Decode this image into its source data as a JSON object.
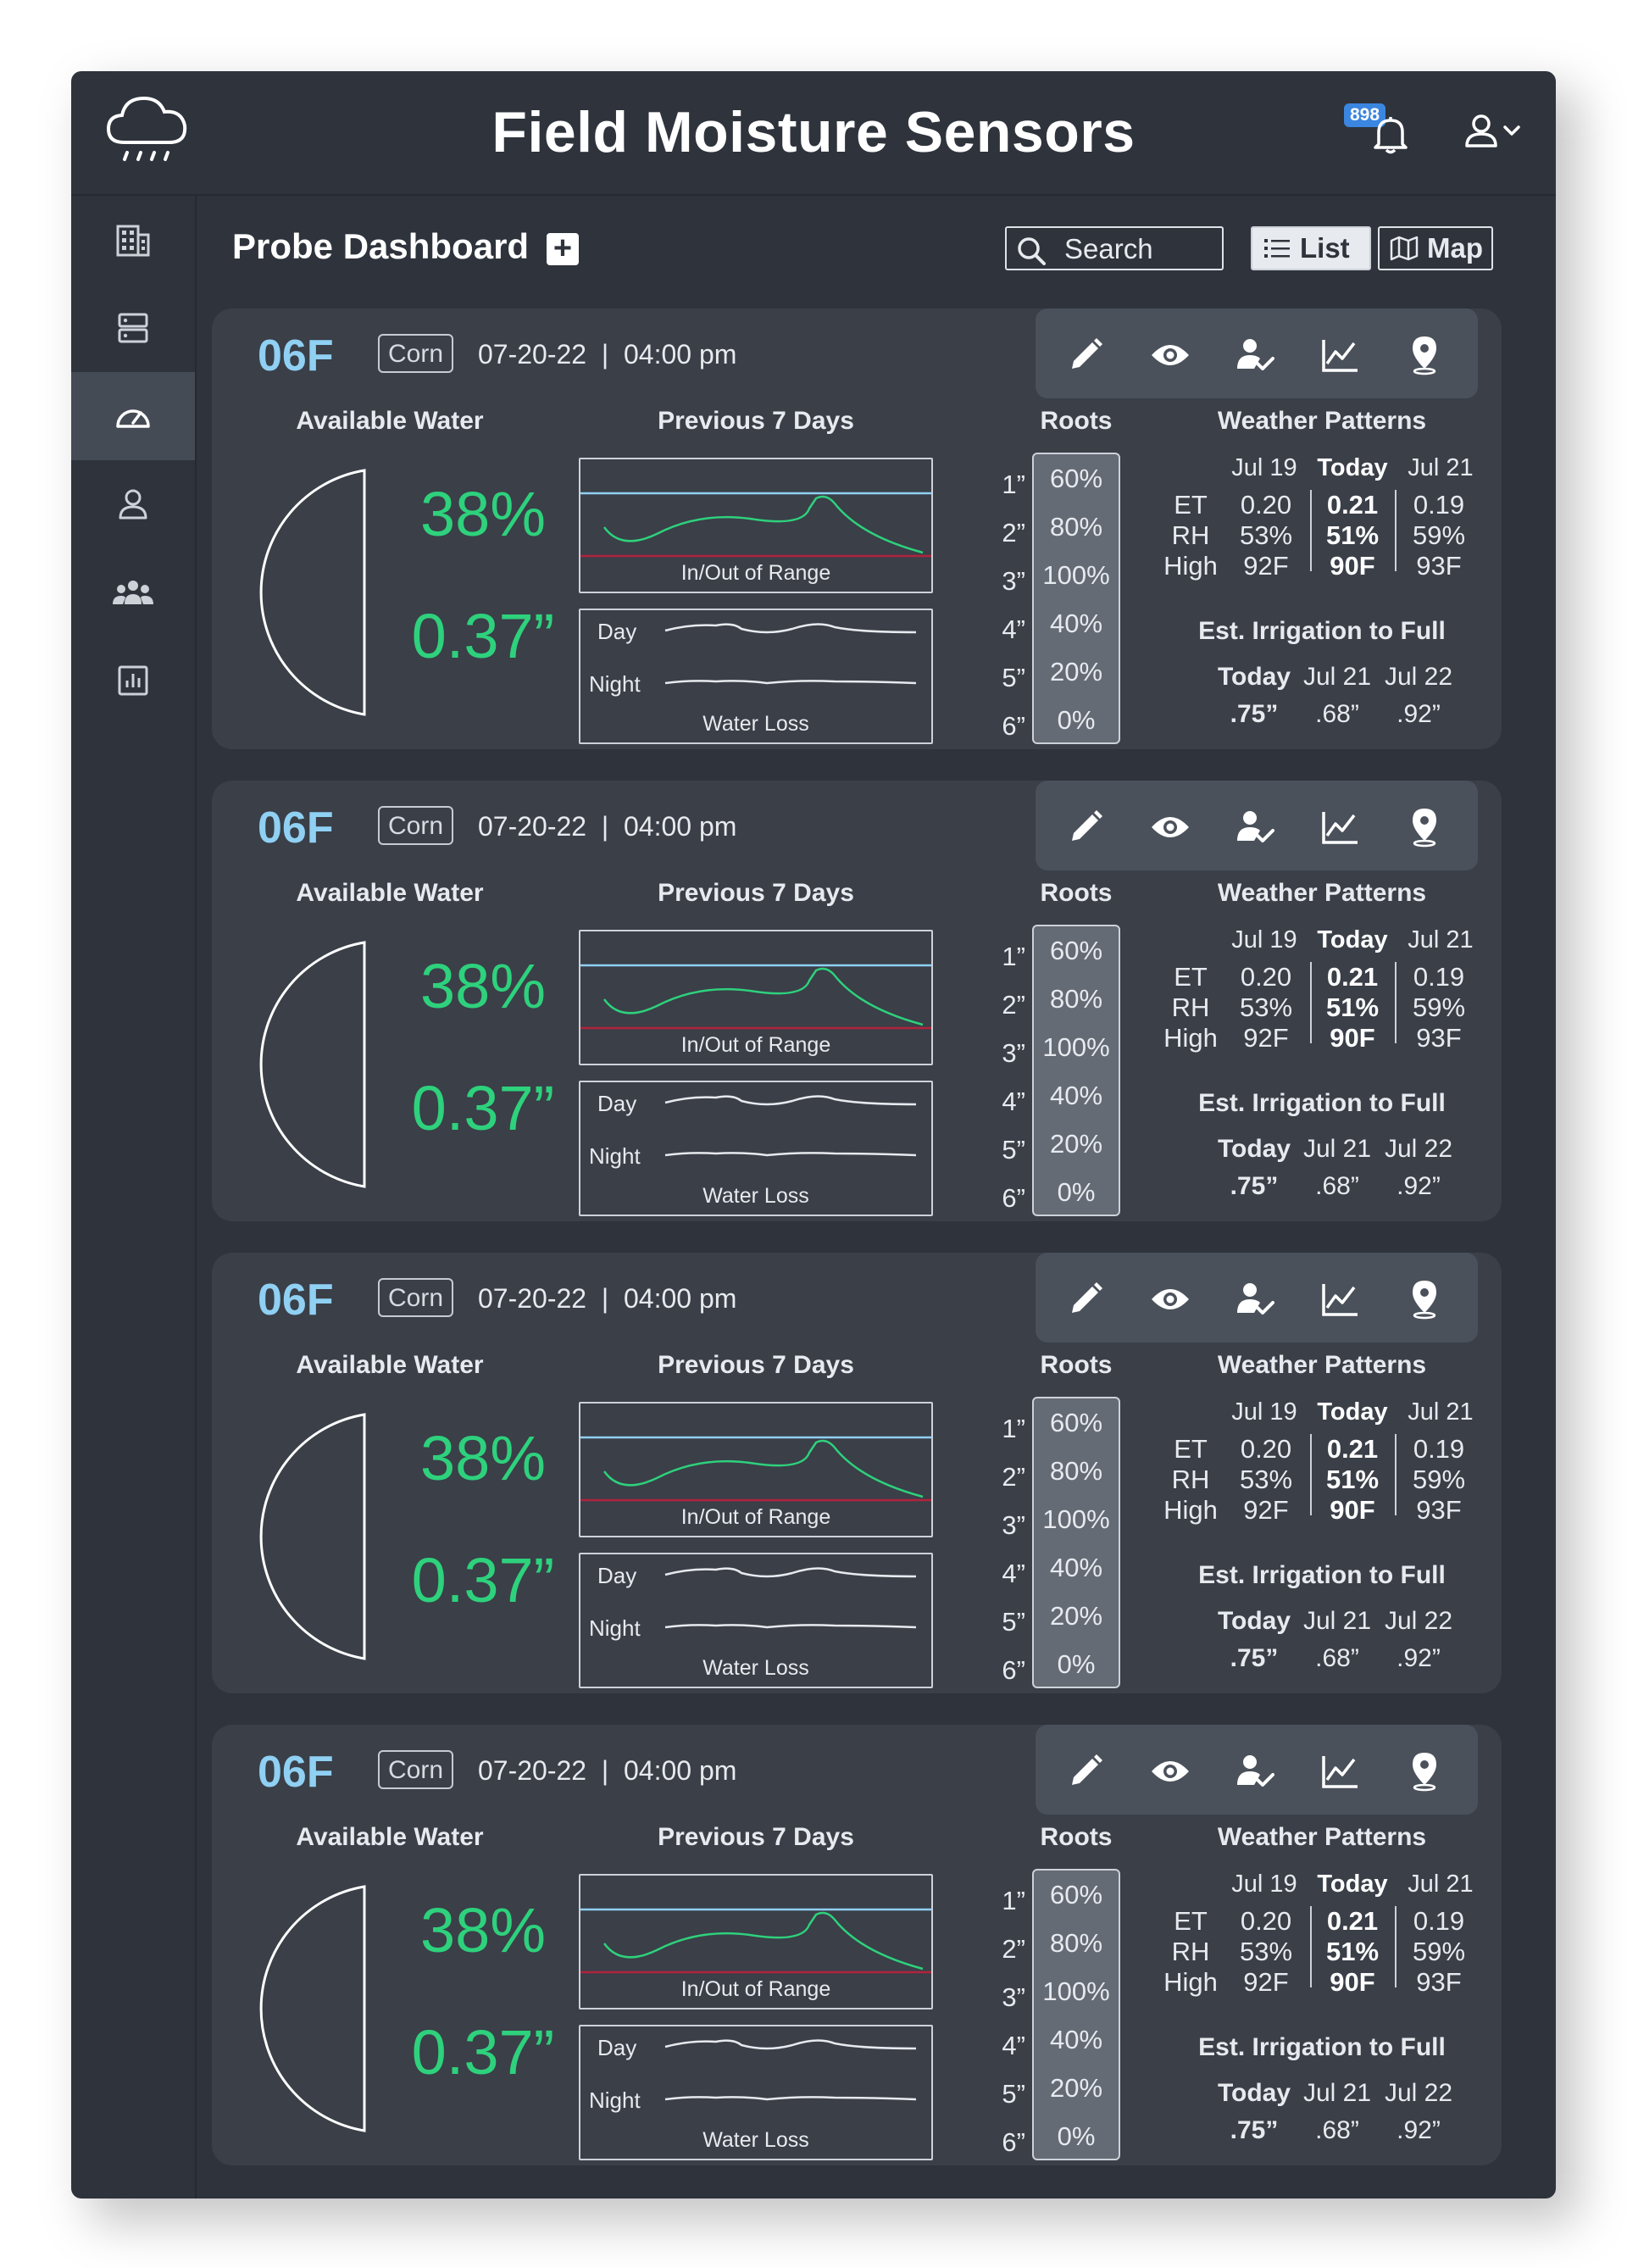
{
  "app": {
    "title": "Field Moisture Sensors",
    "notification_count": "898"
  },
  "page": {
    "title": "Probe Dashboard"
  },
  "toolbar": {
    "search_placeholder": "Search",
    "list_label": "List",
    "map_label": "Map"
  },
  "sidebar": {
    "items": [
      {
        "name": "buildings",
        "icon": "building-icon"
      },
      {
        "name": "servers",
        "icon": "server-icon"
      },
      {
        "name": "dashboard",
        "icon": "gauge-icon",
        "active": true
      },
      {
        "name": "user",
        "icon": "person-icon"
      },
      {
        "name": "team",
        "icon": "group-icon"
      },
      {
        "name": "reports",
        "icon": "bar-chart-icon"
      }
    ]
  },
  "labels": {
    "available_water": "Available Water",
    "previous_7_days": "Previous 7 Days",
    "roots": "Roots",
    "weather_patterns": "Weather Patterns",
    "in_out_range": "In/Out of Range",
    "day": "Day",
    "night": "Night",
    "water_loss": "Water Loss",
    "est_irrigation": "Est. Irrigation to Full"
  },
  "colors": {
    "accent_blue": "#8fd0f3",
    "accent_green": "#2ed17c",
    "range_low": "#b0233c",
    "range_high": "#8fd0f3"
  },
  "probes": [
    {
      "id": "06F",
      "crop": "Corn",
      "date": "07-20-22",
      "time": "04:00 pm",
      "available_water_pct": "38%",
      "available_water_in": "0.37”",
      "roots": [
        {
          "depth": "1”",
          "value": "60%"
        },
        {
          "depth": "2”",
          "value": "80%"
        },
        {
          "depth": "3”",
          "value": "100%"
        },
        {
          "depth": "4”",
          "value": "40%"
        },
        {
          "depth": "5”",
          "value": "20%"
        },
        {
          "depth": "6”",
          "value": "0%"
        }
      ],
      "weather": {
        "days": [
          "Jul 19",
          "Today",
          "Jul 21"
        ],
        "rows": [
          {
            "label": "ET",
            "values": [
              "0.20",
              "0.21",
              "0.19"
            ]
          },
          {
            "label": "RH",
            "values": [
              "53%",
              "51%",
              "59%"
            ]
          },
          {
            "label": "High",
            "values": [
              "92F",
              "90F",
              "93F"
            ]
          }
        ]
      },
      "irrigation": {
        "days": [
          "Today",
          "Jul 21",
          "Jul 22"
        ],
        "values": [
          ".75”",
          ".68”",
          ".92”"
        ]
      }
    },
    {
      "id": "06F",
      "crop": "Corn",
      "date": "07-20-22",
      "time": "04:00 pm",
      "available_water_pct": "38%",
      "available_water_in": "0.37”",
      "roots": [
        {
          "depth": "1”",
          "value": "60%"
        },
        {
          "depth": "2”",
          "value": "80%"
        },
        {
          "depth": "3”",
          "value": "100%"
        },
        {
          "depth": "4”",
          "value": "40%"
        },
        {
          "depth": "5”",
          "value": "20%"
        },
        {
          "depth": "6”",
          "value": "0%"
        }
      ],
      "weather": {
        "days": [
          "Jul 19",
          "Today",
          "Jul 21"
        ],
        "rows": [
          {
            "label": "ET",
            "values": [
              "0.20",
              "0.21",
              "0.19"
            ]
          },
          {
            "label": "RH",
            "values": [
              "53%",
              "51%",
              "59%"
            ]
          },
          {
            "label": "High",
            "values": [
              "92F",
              "90F",
              "93F"
            ]
          }
        ]
      },
      "irrigation": {
        "days": [
          "Today",
          "Jul 21",
          "Jul 22"
        ],
        "values": [
          ".75”",
          ".68”",
          ".92”"
        ]
      }
    },
    {
      "id": "06F",
      "crop": "Corn",
      "date": "07-20-22",
      "time": "04:00 pm",
      "available_water_pct": "38%",
      "available_water_in": "0.37”",
      "roots": [
        {
          "depth": "1”",
          "value": "60%"
        },
        {
          "depth": "2”",
          "value": "80%"
        },
        {
          "depth": "3”",
          "value": "100%"
        },
        {
          "depth": "4”",
          "value": "40%"
        },
        {
          "depth": "5”",
          "value": "20%"
        },
        {
          "depth": "6”",
          "value": "0%"
        }
      ],
      "weather": {
        "days": [
          "Jul 19",
          "Today",
          "Jul 21"
        ],
        "rows": [
          {
            "label": "ET",
            "values": [
              "0.20",
              "0.21",
              "0.19"
            ]
          },
          {
            "label": "RH",
            "values": [
              "53%",
              "51%",
              "59%"
            ]
          },
          {
            "label": "High",
            "values": [
              "92F",
              "90F",
              "93F"
            ]
          }
        ]
      },
      "irrigation": {
        "days": [
          "Today",
          "Jul 21",
          "Jul 22"
        ],
        "values": [
          ".75”",
          ".68”",
          ".92”"
        ]
      }
    },
    {
      "id": "06F",
      "crop": "Corn",
      "date": "07-20-22",
      "time": "04:00 pm",
      "available_water_pct": "38%",
      "available_water_in": "0.37”",
      "roots": [
        {
          "depth": "1”",
          "value": "60%"
        },
        {
          "depth": "2”",
          "value": "80%"
        },
        {
          "depth": "3”",
          "value": "100%"
        },
        {
          "depth": "4”",
          "value": "40%"
        },
        {
          "depth": "5”",
          "value": "20%"
        },
        {
          "depth": "6”",
          "value": "0%"
        }
      ],
      "weather": {
        "days": [
          "Jul 19",
          "Today",
          "Jul 21"
        ],
        "rows": [
          {
            "label": "ET",
            "values": [
              "0.20",
              "0.21",
              "0.19"
            ]
          },
          {
            "label": "RH",
            "values": [
              "53%",
              "51%",
              "59%"
            ]
          },
          {
            "label": "High",
            "values": [
              "92F",
              "90F",
              "93F"
            ]
          }
        ]
      },
      "irrigation": {
        "days": [
          "Today",
          "Jul 21",
          "Jul 22"
        ],
        "values": [
          ".75”",
          ".68”",
          ".92”"
        ]
      }
    }
  ]
}
